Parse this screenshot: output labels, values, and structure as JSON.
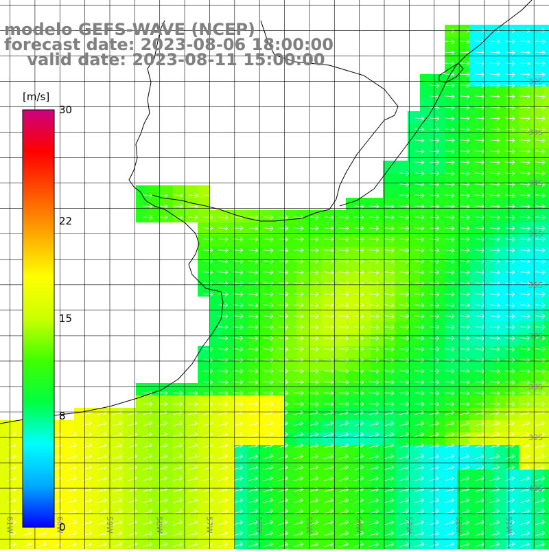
{
  "title": {
    "line1": "modelo GEFS-WAVE (NCEP)",
    "line2": "forecast date: 2023-08-06 18:00:00",
    "line3": "    valid date: 2023-08-11 15:00:00"
  },
  "colorbar": {
    "units": "[m/s]",
    "ticks": [
      {
        "value": 30,
        "label": "30"
      },
      {
        "value": 22,
        "label": "22"
      },
      {
        "value": 15,
        "label": "15"
      },
      {
        "value": 8,
        "label": "8"
      },
      {
        "value": 0,
        "label": "0"
      }
    ],
    "range": [
      0,
      30
    ],
    "colors": [
      "#0000ff",
      "#00aaff",
      "#00ffff",
      "#00ff40",
      "#40ff00",
      "#ccff00",
      "#ffff00",
      "#ffaa00",
      "#ff5500",
      "#ff0000",
      "#cc0080"
    ]
  },
  "map": {
    "lon_range": [
      -61.2,
      -50.2
    ],
    "lat_range": [
      -41.2,
      -30.4
    ],
    "lon_labels": [
      "61W",
      "60W",
      "59W",
      "58W",
      "57W",
      "56W",
      "55W",
      "54W",
      "53W",
      "52W",
      "51W"
    ],
    "lat_labels": [
      "32S",
      "33S",
      "34S",
      "35S",
      "36S",
      "37S",
      "38S",
      "39S",
      "40S"
    ],
    "land_color": "#ffffff",
    "grid_color": "#000000",
    "vector_color": "#ffffff"
  }
}
